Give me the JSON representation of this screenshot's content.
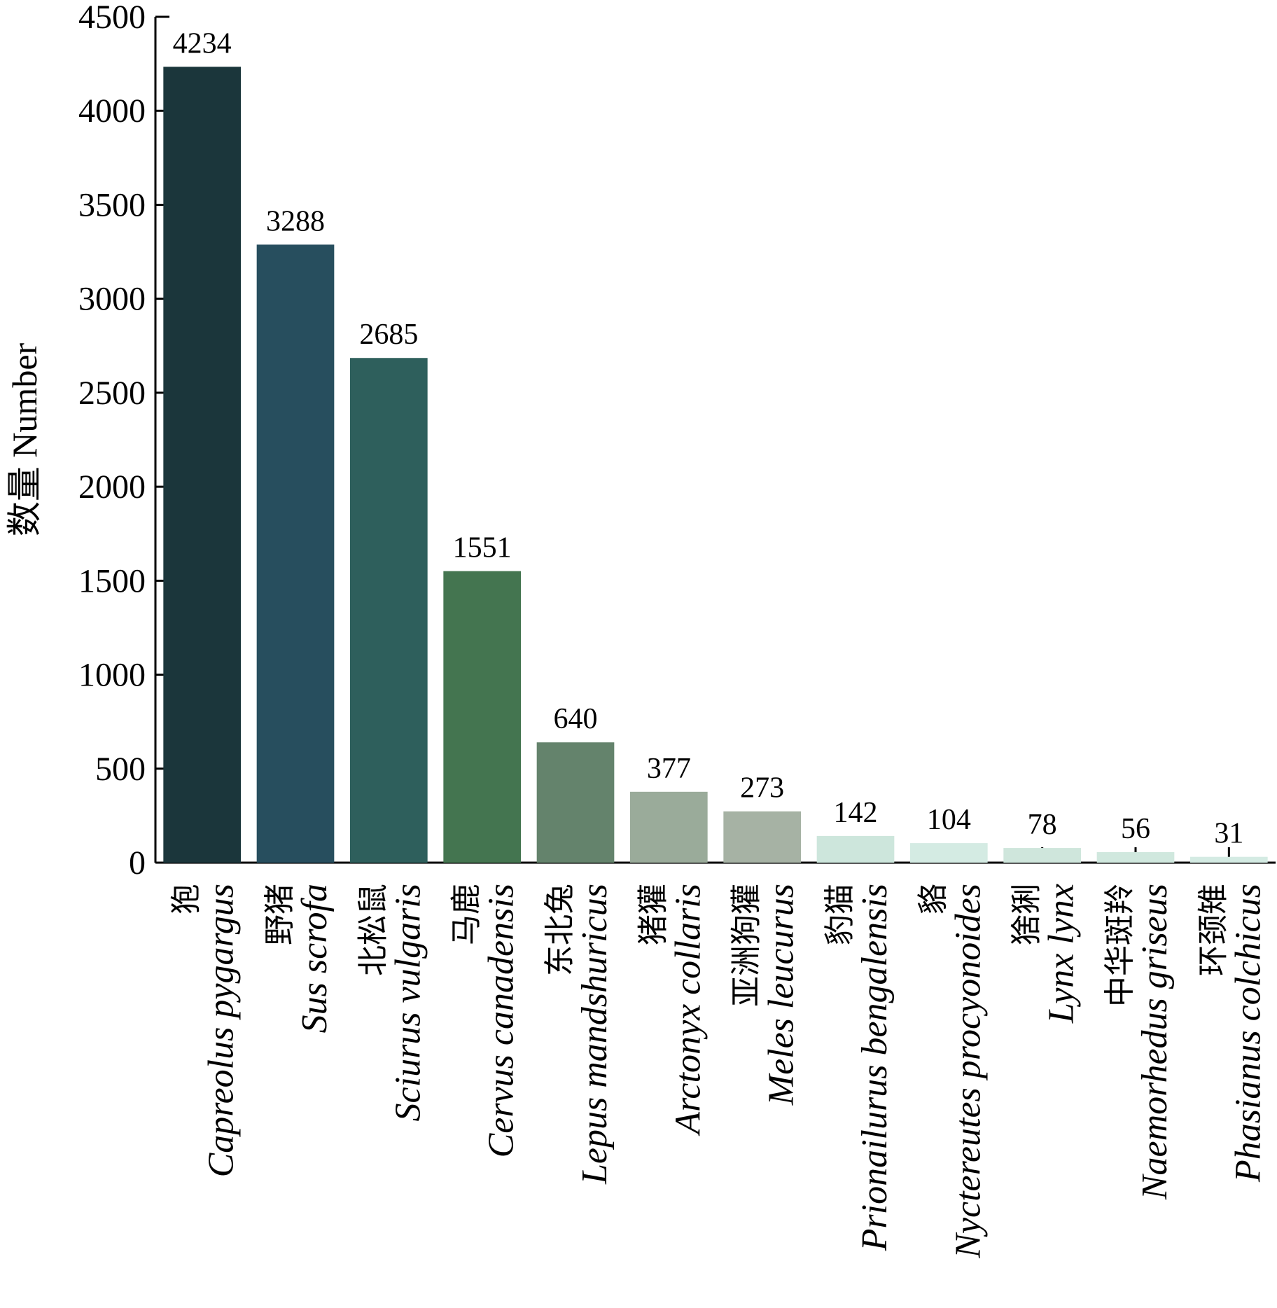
{
  "chart_data": {
    "type": "bar",
    "title": "",
    "xlabel": "",
    "ylabel": "数量 Number",
    "ylim": [
      0,
      4500
    ],
    "yticks": [
      0,
      500,
      1000,
      1500,
      2000,
      2500,
      3000,
      3500,
      4000,
      4500
    ],
    "grid": false,
    "legend": "none",
    "categories": [
      {
        "cn": "狍",
        "latin": "Capreolus pygargus"
      },
      {
        "cn": "野猪",
        "latin": "Sus scrofa"
      },
      {
        "cn": "北松鼠",
        "latin": "Sciurus vulgaris"
      },
      {
        "cn": "马鹿",
        "latin": "Cervus canadensis"
      },
      {
        "cn": "东北兔",
        "latin": "Lepus mandshuricus"
      },
      {
        "cn": "猪獾",
        "latin": "Arctonyx collaris"
      },
      {
        "cn": "亚洲狗獾",
        "latin": "Meles leucurus"
      },
      {
        "cn": "豹猫",
        "latin": "Prionailurus bengalensis"
      },
      {
        "cn": "貉",
        "latin": "Nyctereutes procyonoides"
      },
      {
        "cn": "猞猁",
        "latin": "Lynx lynx"
      },
      {
        "cn": "中华斑羚",
        "latin": "Naemorhedus griseus"
      },
      {
        "cn": "环颈雉",
        "latin": "Phasianus colchicus"
      }
    ],
    "values": [
      4234,
      3288,
      2685,
      1551,
      640,
      377,
      273,
      142,
      104,
      78,
      56,
      31
    ],
    "colors": [
      "#1b363b",
      "#274e5e",
      "#2e5f5c",
      "#447550",
      "#64836c",
      "#9aab9a",
      "#a6b2a4",
      "#cde6dc",
      "#d4ebe3",
      "#cfe6dc",
      "#d0e8de",
      "#d4ebe3"
    ]
  }
}
